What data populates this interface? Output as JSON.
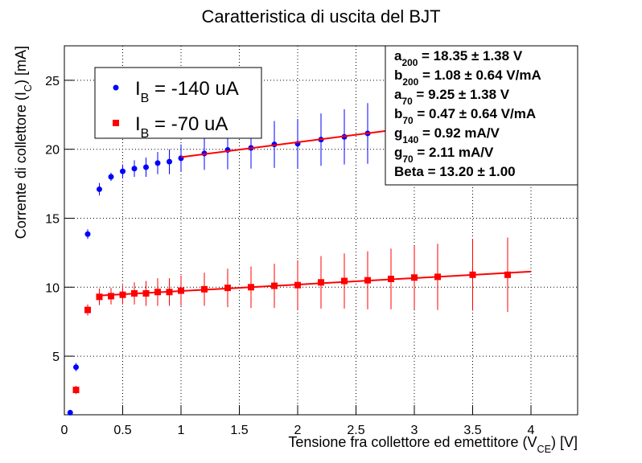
{
  "chart_data": {
    "type": "scatter",
    "title": "Caratteristica di uscita del BJT",
    "x_label": {
      "main": "Tensione fra collettore ed emettitore (V",
      "sub": "CE",
      "rest": ") [V]"
    },
    "y_label": {
      "main": "Corrente di collettore (I",
      "sub": "C",
      "rest": ") [mA]"
    },
    "xlim": [
      0,
      4.4
    ],
    "ylim": [
      0.75,
      27.5
    ],
    "xticks": [
      0,
      0.5,
      1,
      1.5,
      2,
      2.5,
      3,
      3.5,
      4
    ],
    "yticks": [
      5,
      10,
      15,
      20,
      25
    ],
    "grid": true,
    "legend_position": "upper-left",
    "series": [
      {
        "name": "I",
        "name_sub": "B",
        "name_rest": " = -140 uA",
        "color": "#0000ff",
        "marker": "circle",
        "x": [
          0.05,
          0.1,
          0.2,
          0.3,
          0.4,
          0.5,
          0.6,
          0.7,
          0.8,
          0.9,
          1.0,
          1.2,
          1.4,
          1.6,
          1.8,
          2.0,
          2.2,
          2.4,
          2.6
        ],
        "values": [
          0.9,
          4.2,
          13.85,
          17.1,
          18.0,
          18.4,
          18.6,
          18.7,
          19.0,
          19.1,
          19.35,
          19.7,
          19.95,
          20.1,
          20.35,
          20.4,
          20.7,
          20.9,
          21.15
        ],
        "errors": [
          0.1,
          0.3,
          0.35,
          0.45,
          0.3,
          0.5,
          0.6,
          0.7,
          0.8,
          0.9,
          1.0,
          1.2,
          1.4,
          1.5,
          1.7,
          1.8,
          1.9,
          2.0,
          2.2
        ]
      },
      {
        "name": "I",
        "name_sub": "B",
        "name_rest": " = -70 uA",
        "color": "#ff0000",
        "marker": "square",
        "x": [
          0.1,
          0.2,
          0.3,
          0.4,
          0.5,
          0.6,
          0.7,
          0.8,
          0.9,
          1.0,
          1.2,
          1.4,
          1.6,
          1.8,
          2.0,
          2.2,
          2.4,
          2.6,
          2.8,
          3.0,
          3.2,
          3.5,
          3.8
        ],
        "values": [
          2.55,
          8.35,
          9.3,
          9.35,
          9.45,
          9.55,
          9.55,
          9.65,
          9.65,
          9.75,
          9.85,
          9.95,
          10.0,
          10.1,
          10.15,
          10.35,
          10.45,
          10.5,
          10.6,
          10.7,
          10.75,
          10.9,
          10.9
        ],
        "errors": [
          0.3,
          0.4,
          0.6,
          0.6,
          0.7,
          0.8,
          0.9,
          1.0,
          1.0,
          1.1,
          1.2,
          1.4,
          1.5,
          1.6,
          1.8,
          1.9,
          2.0,
          2.1,
          2.2,
          2.3,
          2.4,
          2.6,
          2.7
        ]
      }
    ],
    "fit_lines": [
      {
        "color": "#ff0000",
        "x": [
          1.0,
          4.0
        ],
        "values": [
          19.43,
          22.67
        ]
      },
      {
        "color": "#ff0000",
        "x": [
          0.3,
          4.0
        ],
        "values": [
          9.39,
          11.13
        ]
      }
    ],
    "stats": [
      {
        "main": "a",
        "sub": "200",
        "rest": " = 18.35 ± 1.38 V"
      },
      {
        "main": "b",
        "sub": "200",
        "rest": " = 1.08 ± 0.64 V/mA"
      },
      {
        "main": "a",
        "sub": "70",
        "rest": " = 9.25 ± 1.38 V"
      },
      {
        "main": "b",
        "sub": "70",
        "rest": " = 0.47 ± 0.64 V/mA"
      },
      {
        "main": "g",
        "sub": "140",
        "rest": " = 0.92 mA/V"
      },
      {
        "main": "g",
        "sub": "70",
        "rest": " = 2.11 mA/V"
      },
      {
        "main": "Beta = 13.20 ± 1.00",
        "sub": "",
        "rest": ""
      }
    ]
  }
}
